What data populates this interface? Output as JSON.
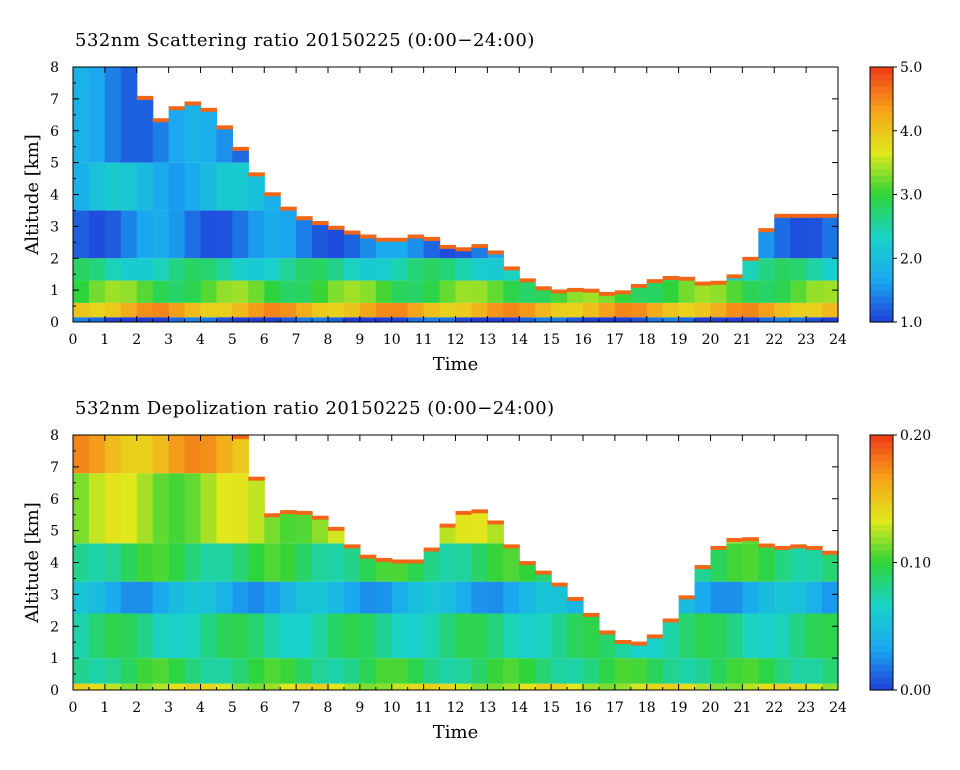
{
  "chart_data": [
    {
      "type": "heatmap",
      "title": "532nm Scattering ratio  20150225 (0:00−24:00)",
      "xlabel": "Time",
      "ylabel": "Altitude [km]",
      "xlim": [
        0,
        24
      ],
      "ylim": [
        0,
        8
      ],
      "x_ticks": [
        "0",
        "1",
        "2",
        "3",
        "4",
        "5",
        "6",
        "7",
        "8",
        "9",
        "10",
        "11",
        "12",
        "13",
        "14",
        "15",
        "16",
        "17",
        "18",
        "19",
        "20",
        "21",
        "22",
        "23",
        "24"
      ],
      "y_ticks": [
        "0",
        "1",
        "2",
        "3",
        "4",
        "5",
        "6",
        "7",
        "8"
      ],
      "colorbar": {
        "min": 1.0,
        "max": 5.0,
        "ticks": [
          1.0,
          2.0,
          3.0,
          4.0,
          5.0
        ],
        "tick_labels": [
          "1.0",
          "2.0",
          "3.0",
          "4.0",
          "5.0"
        ],
        "colors": [
          "#1f3fd9",
          "#1aa9f0",
          "#19d3c8",
          "#2fd43a",
          "#e2e81c",
          "#f5a21a",
          "#ef3a17"
        ]
      },
      "cloud_top_km": [
        [
          0,
          8.0
        ],
        [
          1,
          8.0
        ],
        [
          2,
          8.0
        ],
        [
          2.5,
          6.0
        ],
        [
          3,
          6.6
        ],
        [
          4,
          6.9
        ],
        [
          5,
          5.8
        ],
        [
          6,
          4.2
        ],
        [
          7,
          3.3
        ],
        [
          8,
          3.0
        ],
        [
          9,
          2.7
        ],
        [
          10,
          2.5
        ],
        [
          11,
          2.7
        ],
        [
          12,
          2.2
        ],
        [
          13,
          2.4
        ],
        [
          14,
          1.4
        ],
        [
          15,
          0.9
        ],
        [
          16,
          1.0
        ],
        [
          17,
          0.8
        ],
        [
          18,
          1.2
        ],
        [
          19,
          1.4
        ],
        [
          20,
          1.1
        ],
        [
          21,
          1.5
        ],
        [
          22,
          3.3
        ],
        [
          23,
          3.3
        ],
        [
          24,
          3.3
        ]
      ],
      "bands": [
        {
          "from_km": 0.0,
          "to_km": 0.15,
          "value": 1.1
        },
        {
          "from_km": 0.15,
          "to_km": 0.6,
          "value": 4.2
        },
        {
          "from_km": 0.6,
          "to_km": 1.3,
          "value": 3.1
        },
        {
          "from_km": 1.3,
          "to_km": 2.0,
          "value": 2.5
        },
        {
          "from_km": 2.0,
          "to_km": 3.5,
          "value": 1.4
        },
        {
          "from_km": 3.5,
          "to_km": 5.0,
          "value": 1.9
        },
        {
          "from_km": 5.0,
          "to_km": 8.0,
          "value": 1.5
        }
      ]
    },
    {
      "type": "heatmap",
      "title": "532nm Depolization ratio  20150225 (0:00−24:00)",
      "xlabel": "Time",
      "ylabel": "Altitude [km]",
      "xlim": [
        0,
        24
      ],
      "ylim": [
        0,
        8
      ],
      "x_ticks": [
        "0",
        "1",
        "2",
        "3",
        "4",
        "5",
        "6",
        "7",
        "8",
        "9",
        "10",
        "11",
        "12",
        "13",
        "14",
        "15",
        "16",
        "17",
        "18",
        "19",
        "20",
        "21",
        "22",
        "23",
        "24"
      ],
      "y_ticks": [
        "0",
        "1",
        "2",
        "3",
        "4",
        "5",
        "6",
        "7",
        "8"
      ],
      "colorbar": {
        "min": 0.0,
        "max": 0.2,
        "ticks": [
          0.0,
          0.1,
          0.2
        ],
        "tick_labels": [
          "0.00",
          "0.10",
          "0.20"
        ],
        "colors": [
          "#1f3fd9",
          "#1aa9f0",
          "#19d3c8",
          "#2fd43a",
          "#e2e81c",
          "#f5a21a",
          "#ef3a17"
        ]
      },
      "cloud_top_km": [
        [
          0,
          8.0
        ],
        [
          1,
          8.0
        ],
        [
          2,
          8.0
        ],
        [
          3,
          8.0
        ],
        [
          4,
          8.0
        ],
        [
          5,
          8.0
        ],
        [
          5.5,
          7.8
        ],
        [
          6,
          5.4
        ],
        [
          7,
          5.6
        ],
        [
          8,
          5.3
        ],
        [
          9,
          4.2
        ],
        [
          10,
          4.0
        ],
        [
          11,
          4.0
        ],
        [
          12,
          5.5
        ],
        [
          13,
          5.6
        ],
        [
          14,
          4.1
        ],
        [
          15,
          3.5
        ],
        [
          16,
          2.6
        ],
        [
          17,
          1.5
        ],
        [
          18,
          1.4
        ],
        [
          19,
          2.4
        ],
        [
          20,
          4.3
        ],
        [
          21,
          4.8
        ],
        [
          22,
          4.4
        ],
        [
          23,
          4.5
        ],
        [
          24,
          4.2
        ]
      ],
      "bands": [
        {
          "from_km": 0.0,
          "to_km": 0.2,
          "value": 0.13
        },
        {
          "from_km": 0.2,
          "to_km": 1.0,
          "value": 0.09
        },
        {
          "from_km": 1.0,
          "to_km": 2.4,
          "value": 0.08
        },
        {
          "from_km": 2.4,
          "to_km": 3.4,
          "value": 0.04
        },
        {
          "from_km": 3.4,
          "to_km": 4.6,
          "value": 0.09
        },
        {
          "from_km": 4.6,
          "to_km": 6.8,
          "value": 0.12
        },
        {
          "from_km": 6.8,
          "to_km": 8.0,
          "value": 0.16
        }
      ]
    }
  ]
}
